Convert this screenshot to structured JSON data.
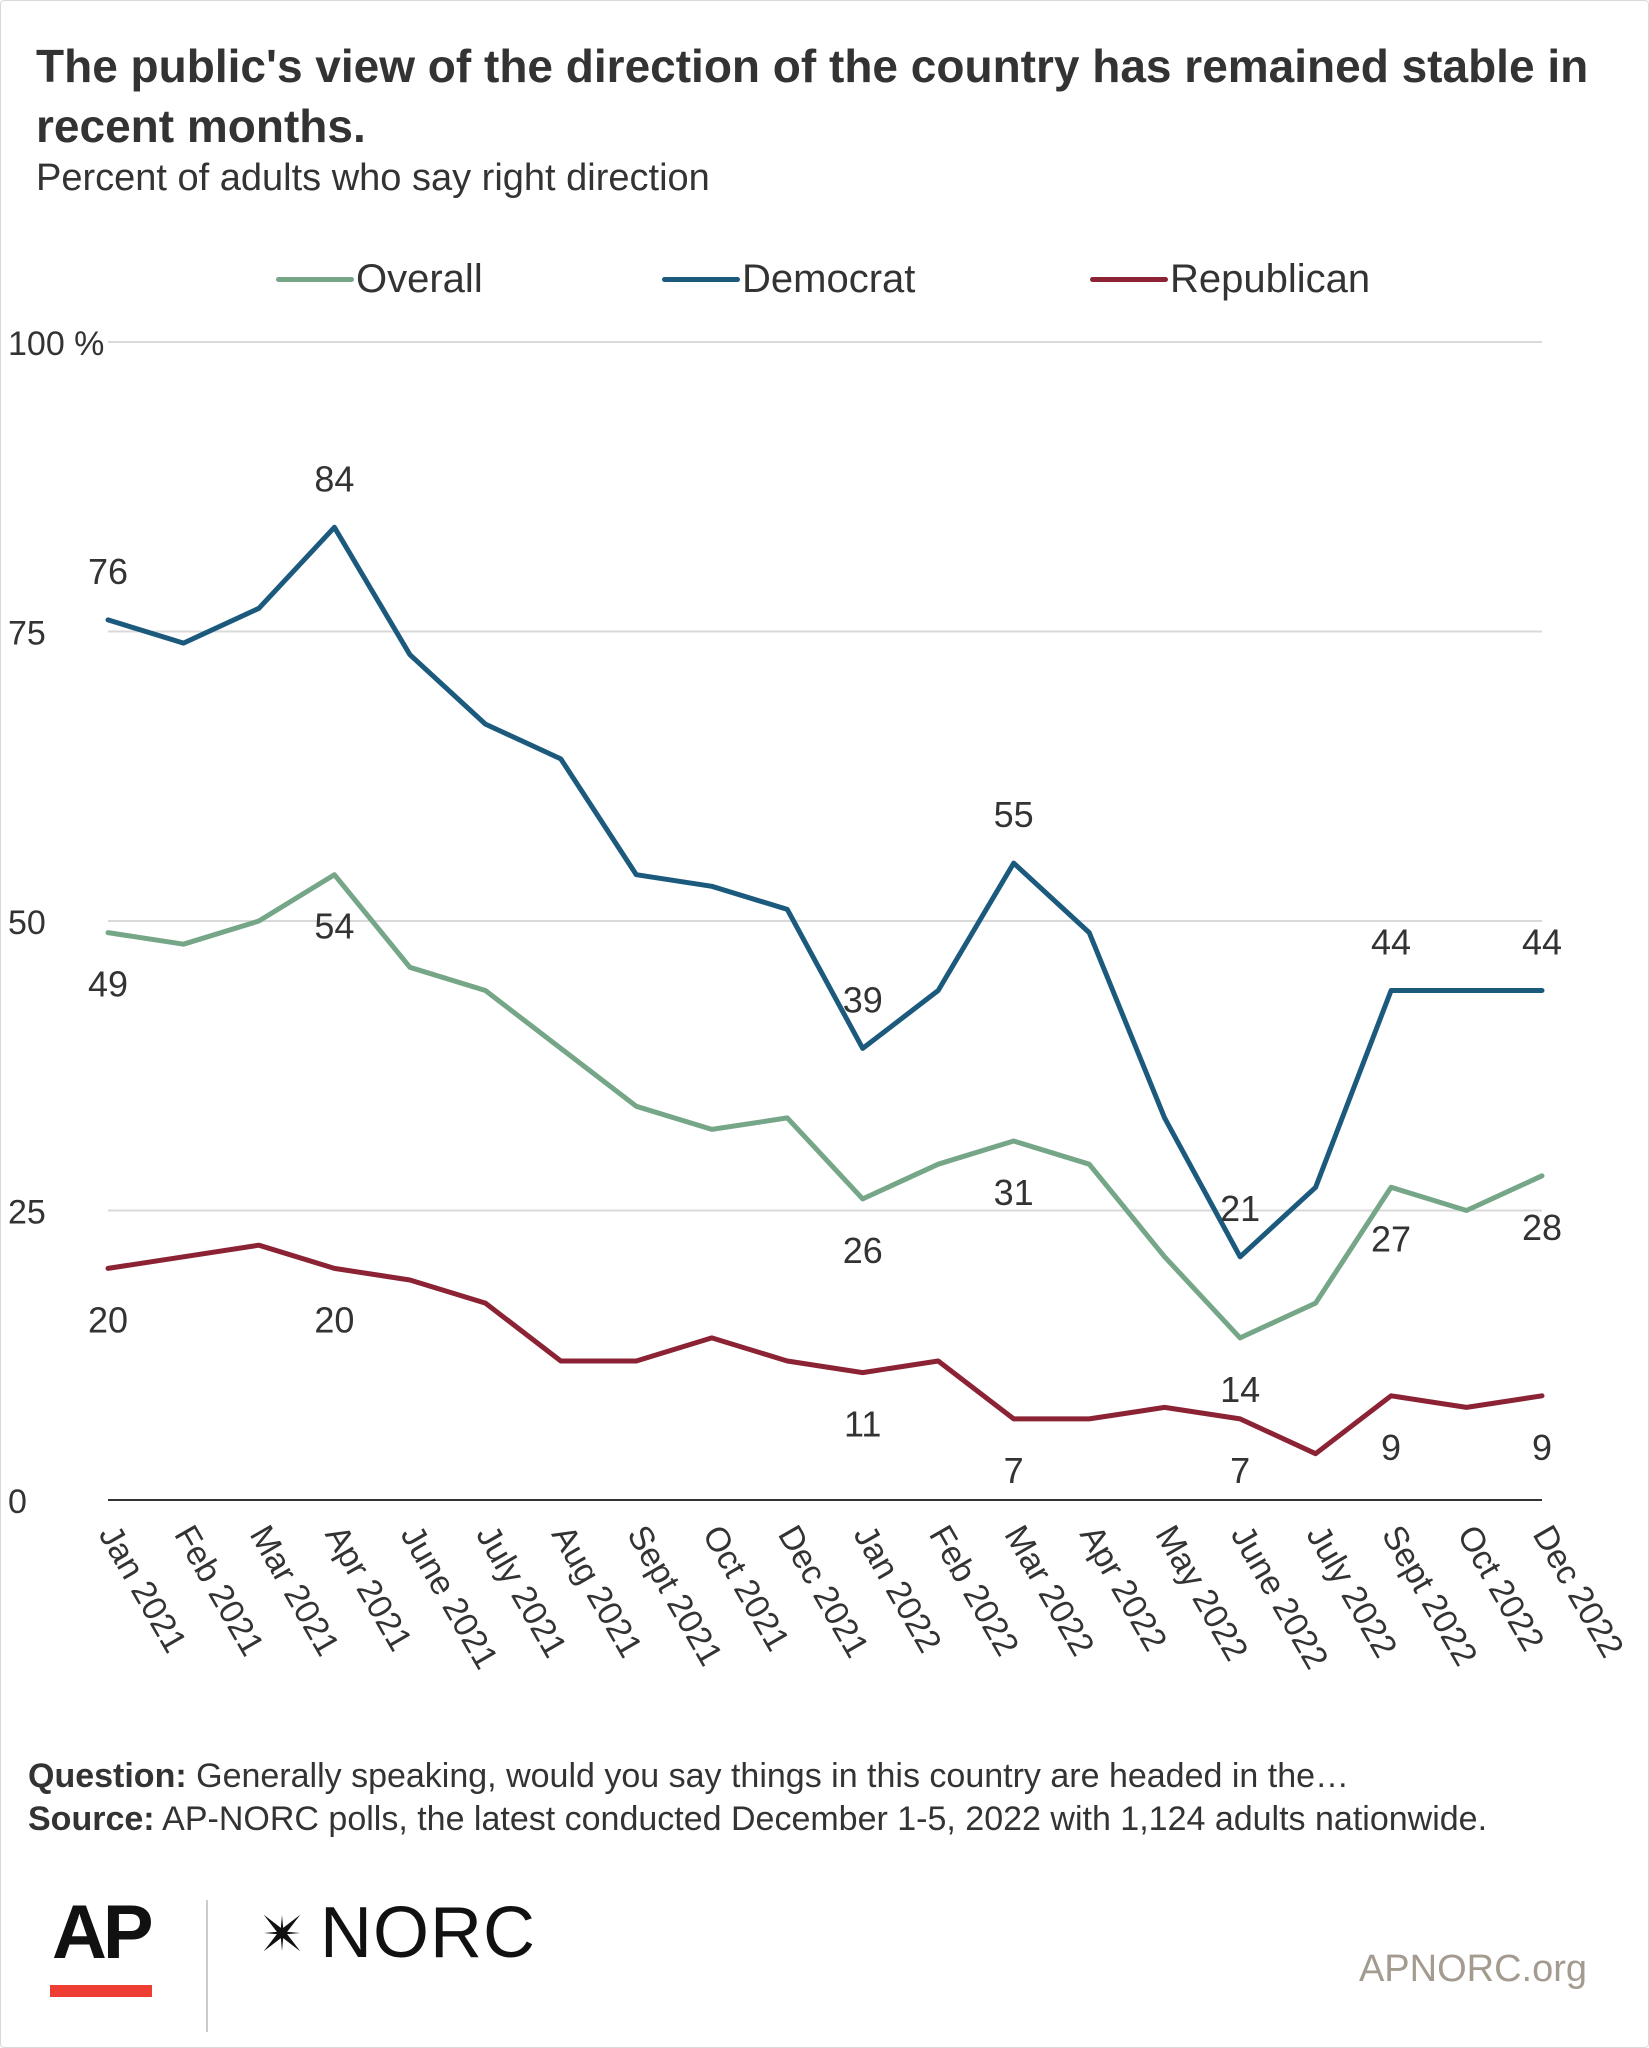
{
  "title": "The public's view of the direction of the country has remained stable in recent months.",
  "subtitle": "Percent of adults who say right direction",
  "chart_data": {
    "type": "line",
    "title": "The public's view of the direction of the country has remained stable in recent months.",
    "subtitle": "Percent of adults who say right direction",
    "x": [
      "Jan 2021",
      "Feb 2021",
      "Mar 2021",
      "Apr 2021",
      "June 2021",
      "July 2021",
      "Aug 2021",
      "Sept 2021",
      "Oct 2021",
      "Dec 2021",
      "Jan 2022",
      "Feb 2022",
      "Mar 2022",
      "Apr 2022",
      "May 2022",
      "June 2022",
      "July 2022",
      "Sept 2022",
      "Oct 2022",
      "Dec 2022"
    ],
    "ylim": [
      0,
      100
    ],
    "yticks": [
      0,
      25,
      50,
      75,
      100
    ],
    "ytick_labels": [
      "0",
      "25",
      "50",
      "75",
      "100 %"
    ],
    "grid": true,
    "legend_position": "top",
    "series": [
      {
        "name": "Overall",
        "color": "#76a688",
        "values": [
          49,
          48,
          50,
          54,
          46,
          44,
          39,
          34,
          32,
          33,
          26,
          29,
          31,
          29,
          21,
          14,
          17,
          27,
          25,
          28
        ],
        "data_labels": [
          {
            "index": 0,
            "text": "49",
            "position": "below"
          },
          {
            "index": 3,
            "text": "54",
            "position": "below"
          },
          {
            "index": 10,
            "text": "26",
            "position": "below"
          },
          {
            "index": 12,
            "text": "31",
            "position": "below"
          },
          {
            "index": 15,
            "text": "14",
            "position": "below"
          },
          {
            "index": 17,
            "text": "27",
            "position": "below"
          },
          {
            "index": 19,
            "text": "28",
            "position": "below"
          }
        ]
      },
      {
        "name": "Democrat",
        "color": "#1c5a7d",
        "values": [
          76,
          74,
          77,
          84,
          73,
          67,
          64,
          54,
          53,
          51,
          39,
          44,
          55,
          49,
          33,
          21,
          27,
          44,
          44,
          44
        ],
        "data_labels": [
          {
            "index": 0,
            "text": "76",
            "position": "above"
          },
          {
            "index": 3,
            "text": "84",
            "position": "above"
          },
          {
            "index": 10,
            "text": "39",
            "position": "above"
          },
          {
            "index": 12,
            "text": "55",
            "position": "above"
          },
          {
            "index": 15,
            "text": "21",
            "position": "above"
          },
          {
            "index": 17,
            "text": "44",
            "position": "above"
          },
          {
            "index": 19,
            "text": "44",
            "position": "above"
          }
        ]
      },
      {
        "name": "Republican",
        "color": "#8b2335",
        "values": [
          20,
          21,
          22,
          20,
          19,
          17,
          12,
          12,
          14,
          12,
          11,
          12,
          7,
          7,
          8,
          7,
          4,
          9,
          8,
          9
        ],
        "data_labels": [
          {
            "index": 0,
            "text": "20",
            "position": "below"
          },
          {
            "index": 3,
            "text": "20",
            "position": "below"
          },
          {
            "index": 10,
            "text": "11",
            "position": "below"
          },
          {
            "index": 12,
            "text": "7",
            "position": "below"
          },
          {
            "index": 15,
            "text": "7",
            "position": "below"
          },
          {
            "index": 17,
            "text": "9",
            "position": "below"
          },
          {
            "index": 19,
            "text": "9",
            "position": "below"
          }
        ]
      }
    ]
  },
  "notes": {
    "question_label": "Question:",
    "question_text": "Generally speaking, would you say things in this country are headed in the…",
    "source_label": "Source:",
    "source_text": "AP-NORC polls, the latest conducted December 1-5, 2022 with 1,124 adults nationwide."
  },
  "logos": {
    "ap": "AP",
    "norc": "NORC",
    "ap_accent_color": "#ee3d33"
  },
  "site": "APNORC.org",
  "colors": {
    "grid": "#d9d9d9",
    "axis": "#333333",
    "text": "#333333"
  }
}
